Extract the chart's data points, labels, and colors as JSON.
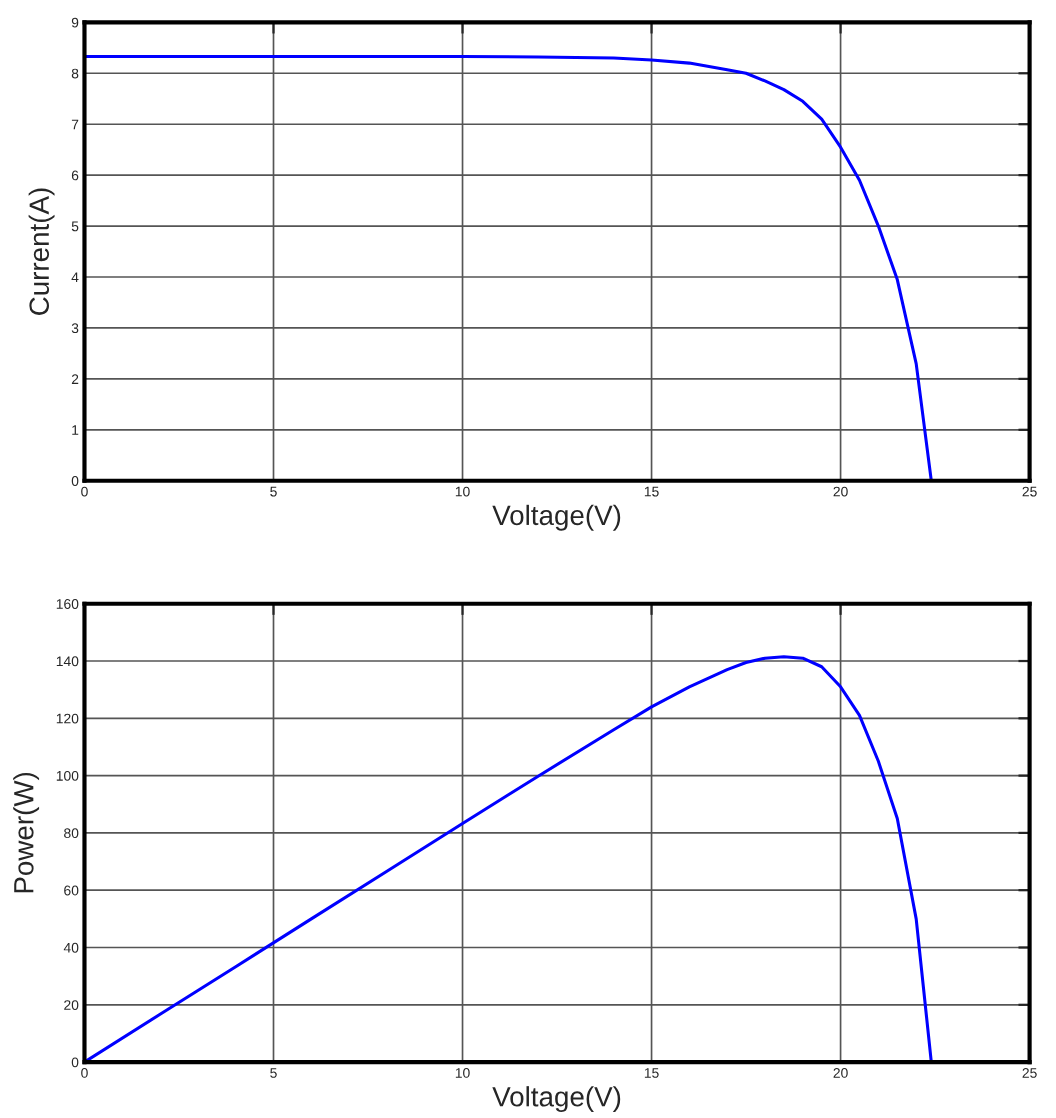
{
  "chart_data": [
    {
      "type": "line",
      "xlabel": "Voltage(V)",
      "ylabel": "Current(A)",
      "xlim": [
        0,
        25
      ],
      "xticks": [
        0,
        5,
        10,
        15,
        20,
        25
      ],
      "ylim": [
        0,
        9
      ],
      "yticks": [
        0,
        1,
        2,
        3,
        4,
        5,
        6,
        7,
        8,
        9
      ],
      "grid": true,
      "marker": "none",
      "line_style": "solid",
      "x": [
        0,
        2,
        4,
        6,
        8,
        10,
        12,
        13,
        14,
        15,
        16,
        17,
        17.5,
        18,
        18.5,
        19,
        19.5,
        20,
        20.5,
        21,
        21.5,
        22,
        22.4
      ],
      "series": [
        {
          "color": "#0000ff",
          "values": [
            8.33,
            8.33,
            8.33,
            8.33,
            8.33,
            8.33,
            8.32,
            8.31,
            8.3,
            8.26,
            8.2,
            8.07,
            8.0,
            7.85,
            7.68,
            7.45,
            7.1,
            6.55,
            5.9,
            5.0,
            3.95,
            2.3,
            0
          ]
        }
      ]
    },
    {
      "type": "line",
      "xlabel": "Voltage(V)",
      "ylabel": "Power(W)",
      "xlim": [
        0,
        25
      ],
      "xticks": [
        0,
        5,
        10,
        15,
        20,
        25
      ],
      "ylim": [
        0,
        160
      ],
      "yticks": [
        0,
        20,
        40,
        60,
        80,
        100,
        120,
        140,
        160
      ],
      "grid": true,
      "marker": "none",
      "line_style": "solid",
      "x": [
        0,
        2,
        4,
        6,
        8,
        10,
        12,
        14,
        15,
        16,
        17,
        17.5,
        18,
        18.5,
        19,
        19.5,
        20,
        20.5,
        21,
        21.5,
        22,
        22.4
      ],
      "series": [
        {
          "color": "#0000ff",
          "values": [
            0,
            16.7,
            33.3,
            50,
            66.6,
            83.3,
            99.8,
            116,
            124,
            131,
            137,
            139.5,
            141,
            141.5,
            141,
            138,
            131,
            121,
            105,
            85,
            50,
            0
          ]
        }
      ]
    }
  ]
}
